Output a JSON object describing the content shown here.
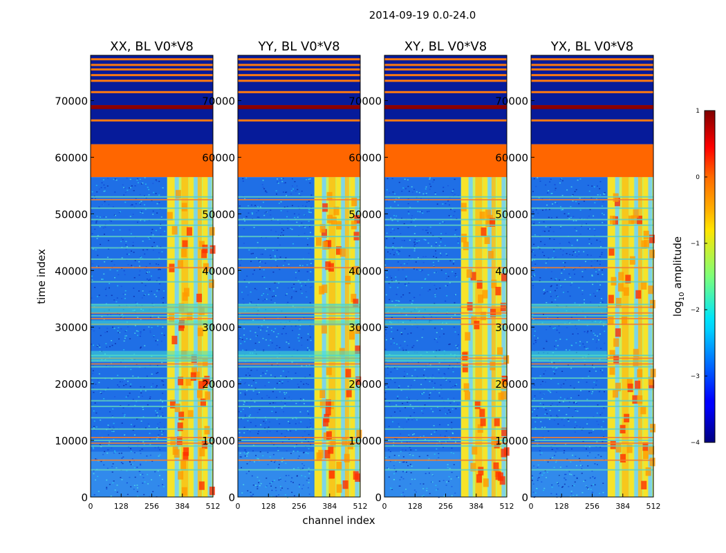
{
  "figure": {
    "suptitle": "2014-09-19 0.0-24.0"
  },
  "chart_data": [
    {
      "type": "heatmap",
      "title": "XX, BL V0*V8",
      "xlabel": "",
      "ylabel": "time index",
      "xlim": [
        0,
        512
      ],
      "ylim": [
        0,
        78000
      ],
      "xticks": [
        "0",
        "128",
        "256",
        "384",
        "512"
      ],
      "yticks": [
        "0",
        "10000",
        "20000",
        "30000",
        "40000",
        "50000",
        "60000",
        "70000"
      ],
      "z_units": "log10 amplitude"
    },
    {
      "type": "heatmap",
      "title": "YY, BL V0*V8",
      "xlabel": "channel index",
      "ylabel": "",
      "xlim": [
        0,
        512
      ],
      "ylim": [
        0,
        78000
      ],
      "xticks": [
        "0",
        "128",
        "256",
        "384",
        "512"
      ],
      "yticks": [
        "0",
        "10000",
        "20000",
        "30000",
        "40000",
        "50000",
        "60000",
        "70000"
      ],
      "z_units": "log10 amplitude"
    },
    {
      "type": "heatmap",
      "title": "XY, BL V0*V8",
      "xlabel": "",
      "ylabel": "",
      "xlim": [
        0,
        512
      ],
      "ylim": [
        0,
        78000
      ],
      "xticks": [
        "0",
        "128",
        "256",
        "384",
        "512"
      ],
      "yticks": [
        "0",
        "10000",
        "20000",
        "30000",
        "40000",
        "50000",
        "60000",
        "70000"
      ],
      "z_units": "log10 amplitude"
    },
    {
      "type": "heatmap",
      "title": "YX, BL V0*V8",
      "xlabel": "",
      "ylabel": "",
      "xlim": [
        0,
        512
      ],
      "ylim": [
        0,
        78000
      ],
      "xticks": [
        "0",
        "128",
        "256",
        "384",
        "512"
      ],
      "yticks": [
        "0",
        "10000",
        "20000",
        "30000",
        "40000",
        "50000",
        "60000",
        "70000"
      ],
      "z_units": "log10 amplitude"
    }
  ],
  "colorbar": {
    "label_prefix": "log",
    "label_sub": "10",
    "label_suffix": " amplitude",
    "min": -4,
    "max": 1,
    "ticks": [
      "1",
      "0",
      "−1",
      "−2",
      "−3",
      "−4"
    ],
    "colormap": "jet"
  },
  "structure": {
    "flag_block": [
      56500,
      62300
    ],
    "band_rows": [
      12000,
      14000,
      16000,
      17000,
      19000,
      21000,
      23000,
      23500,
      24000,
      24500,
      25000,
      30500,
      31500,
      32000,
      32500,
      33500,
      34000,
      38000,
      40500,
      42000,
      44000,
      46000,
      48000,
      49000,
      51000,
      52500,
      53000,
      9000,
      9500,
      10000,
      10500,
      6500,
      4800
    ],
    "top_lines": [
      66500,
      69000,
      71500,
      73500,
      74500,
      75500,
      76300,
      77300
    ],
    "dark_red_row": [
      68500,
      69200
    ],
    "bright_region_channels": [
      320,
      512
    ],
    "bright_columns": [
      322,
      352,
      380,
      412,
      432,
      448,
      470,
      490
    ]
  }
}
